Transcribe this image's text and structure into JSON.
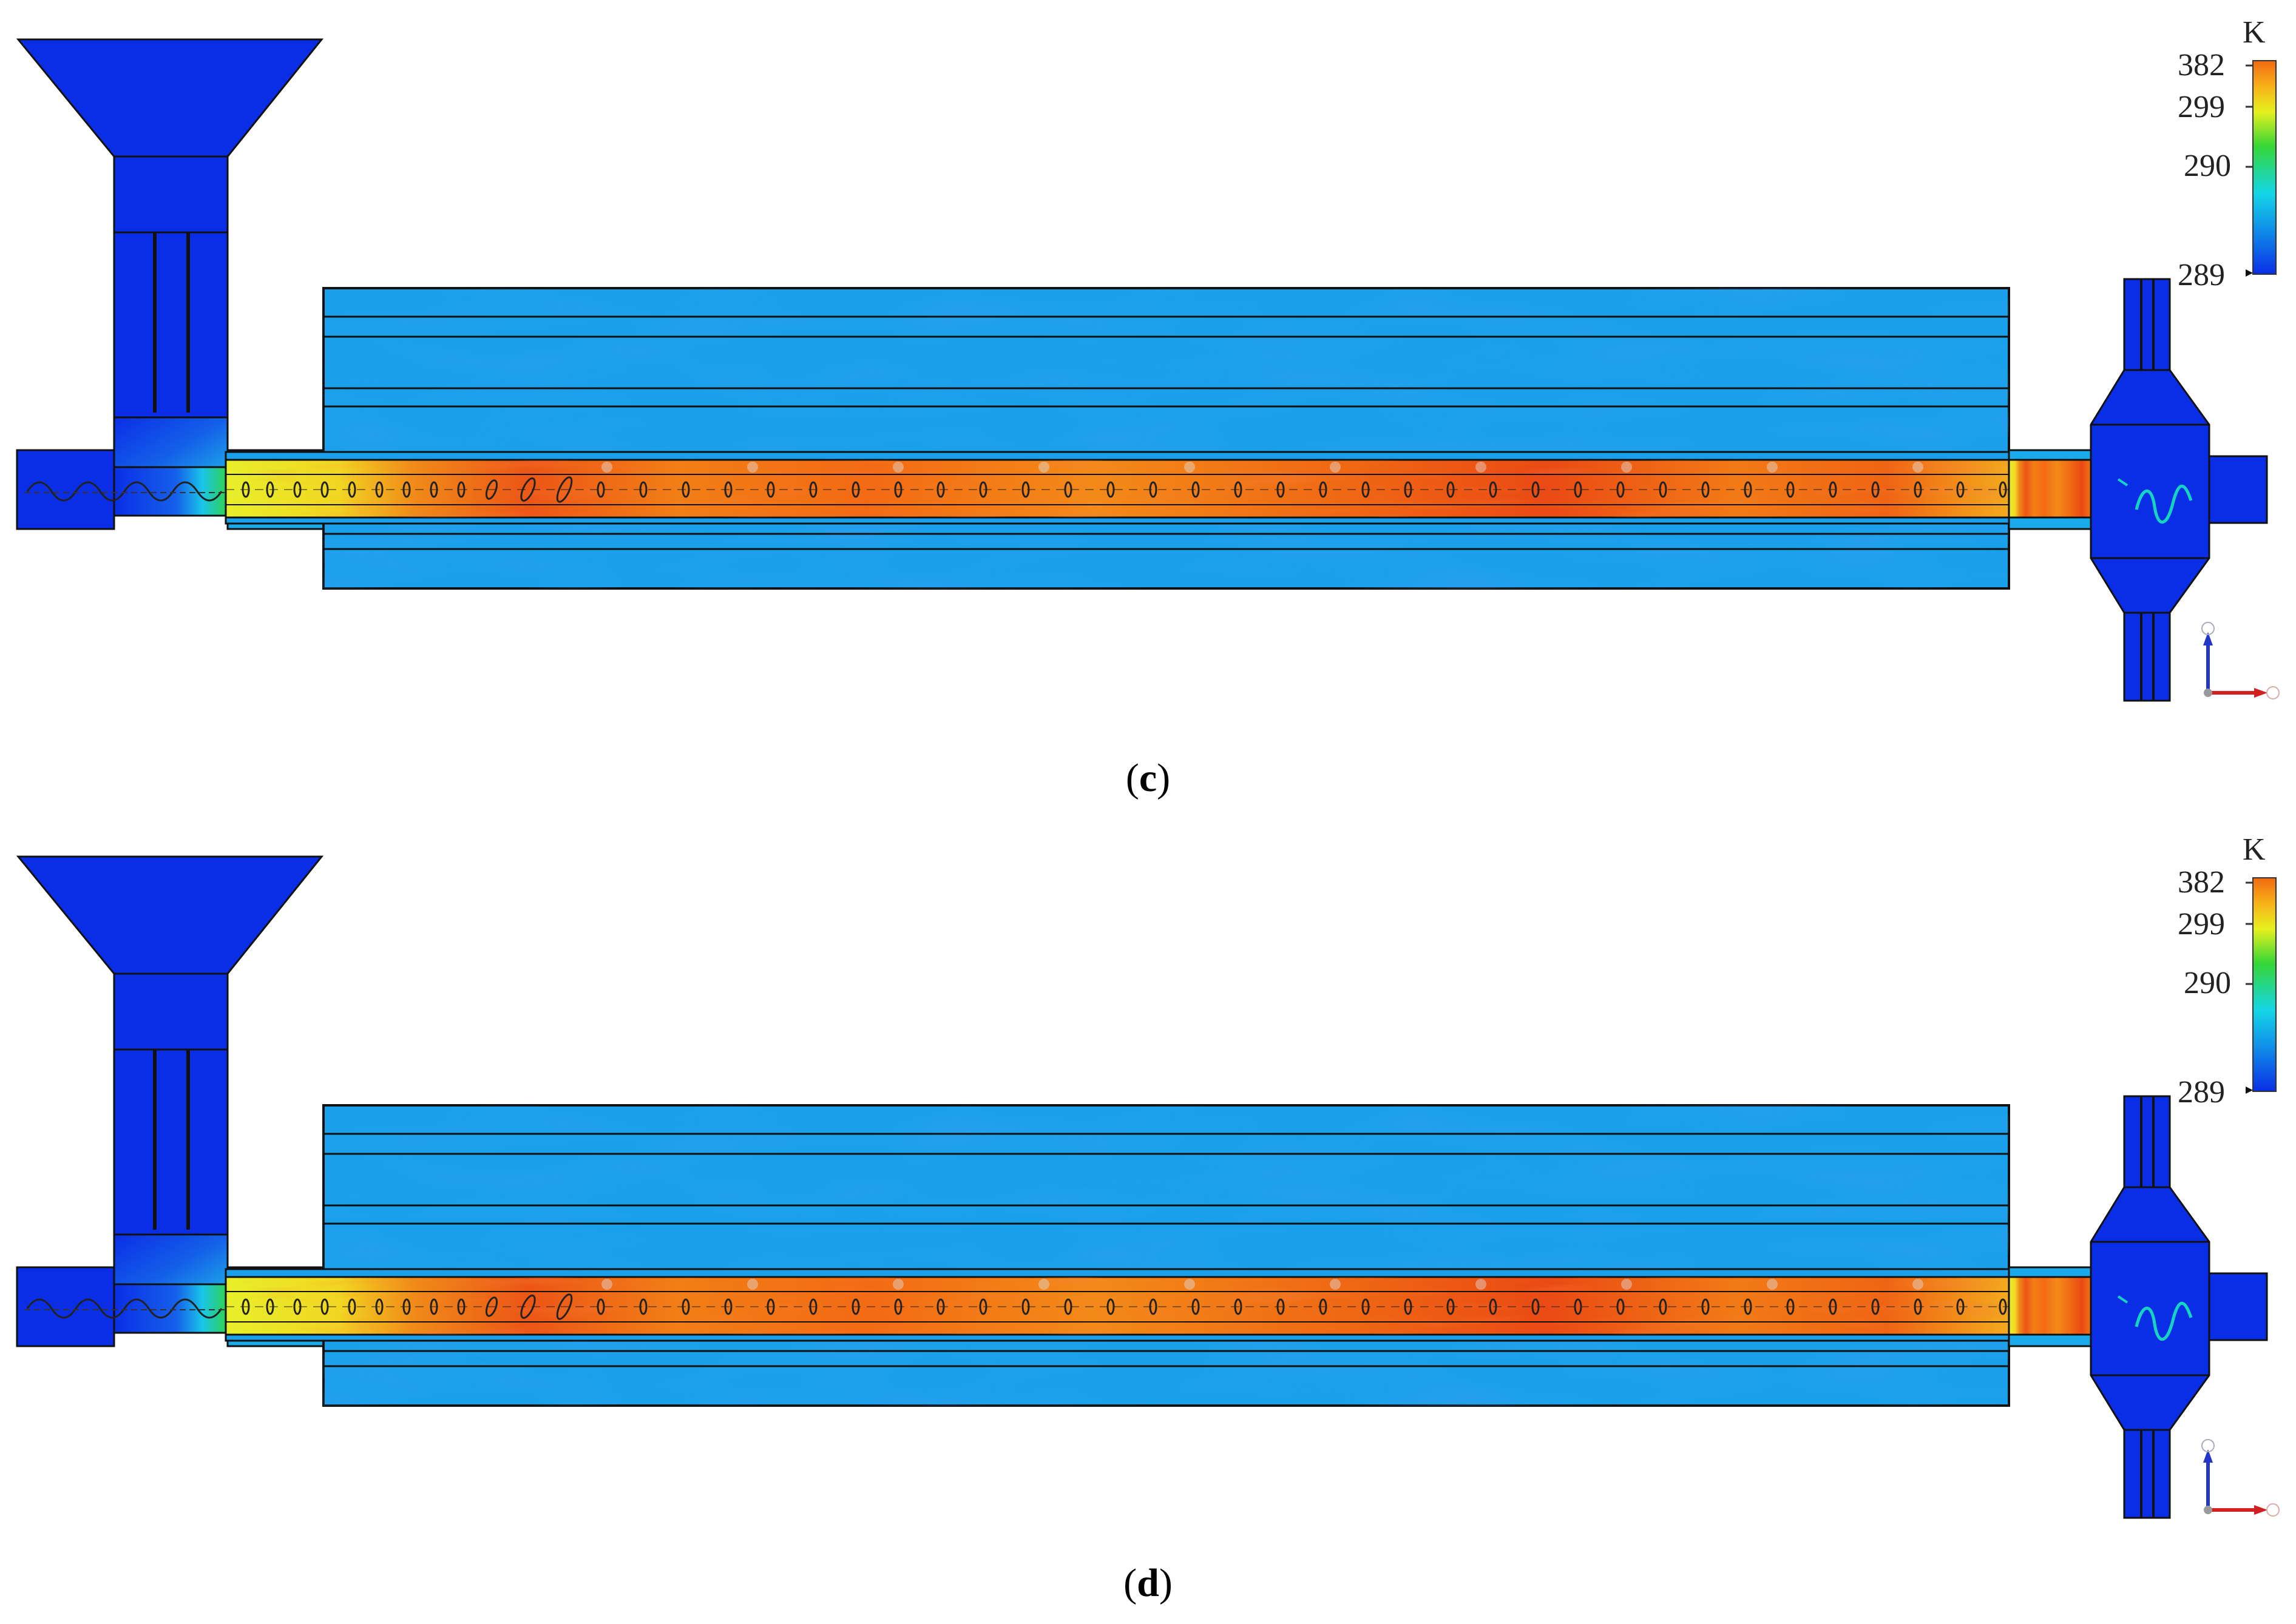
{
  "panels": [
    {
      "label": "c",
      "colorbar": {
        "unit": "K",
        "ticks": [
          "382",
          "299",
          "290",
          "289"
        ]
      }
    },
    {
      "label": "d",
      "colorbar": {
        "unit": "K",
        "ticks": [
          "382",
          "299",
          "290",
          "289"
        ]
      }
    }
  ],
  "colors": {
    "solid_blue": "#0a2ee6",
    "jacket_cyan": "#1aa9ea",
    "hot_orange": "#f57a12",
    "hot_red": "#ea3d12",
    "tube_yellow": "#e8f02a",
    "outline": "#111111"
  },
  "icons": [
    "screw-flight-icon",
    "coordinate-axes-icon"
  ]
}
